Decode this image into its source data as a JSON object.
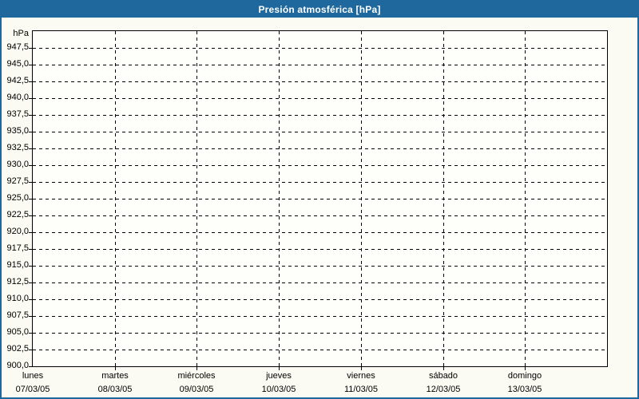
{
  "window": {
    "title": "Presión atmosférica [hPa]"
  },
  "chart_data": {
    "type": "line",
    "title": "Presión atmosférica [hPa]",
    "y_unit": "hPa",
    "ylabel": "hPa",
    "xlabel": "",
    "ylim": [
      900,
      950
    ],
    "y_tick_step": 2.5,
    "y_ticks": [
      {
        "value": 947.5,
        "label": "947,5"
      },
      {
        "value": 945.0,
        "label": "945,0"
      },
      {
        "value": 942.5,
        "label": "942,5"
      },
      {
        "value": 940.0,
        "label": "940,0"
      },
      {
        "value": 937.5,
        "label": "937,5"
      },
      {
        "value": 935.0,
        "label": "935,0"
      },
      {
        "value": 932.5,
        "label": "932,5"
      },
      {
        "value": 930.0,
        "label": "930,0"
      },
      {
        "value": 927.5,
        "label": "927,5"
      },
      {
        "value": 925.0,
        "label": "925,0"
      },
      {
        "value": 922.5,
        "label": "922,5"
      },
      {
        "value": 920.0,
        "label": "920,0"
      },
      {
        "value": 917.5,
        "label": "917,5"
      },
      {
        "value": 915.0,
        "label": "915,0"
      },
      {
        "value": 912.5,
        "label": "912,5"
      },
      {
        "value": 910.0,
        "label": "910,0"
      },
      {
        "value": 907.5,
        "label": "907,5"
      },
      {
        "value": 905.0,
        "label": "905,0"
      },
      {
        "value": 902.5,
        "label": "902,5"
      },
      {
        "value": 900.0,
        "label": "900,0"
      }
    ],
    "x_categories": [
      {
        "day": "lunes",
        "date": "07/03/05"
      },
      {
        "day": "martes",
        "date": "08/03/05"
      },
      {
        "day": "miércoles",
        "date": "09/03/05"
      },
      {
        "day": "jueves",
        "date": "10/03/05"
      },
      {
        "day": "viernes",
        "date": "11/03/05"
      },
      {
        "day": "sábado",
        "date": "12/03/05"
      },
      {
        "day": "domingo",
        "date": "13/03/05"
      }
    ],
    "x_days_shown": 7,
    "series": [],
    "grid": {
      "style": "dashed",
      "color": "#000000"
    },
    "legend": "none"
  },
  "colors": {
    "accent": "#1e689e",
    "titlebar_text": "#ffffff",
    "background": "#fbfbf3",
    "plot_background": "#fefefa",
    "grid": "#000000",
    "axis_text": "#000000"
  }
}
